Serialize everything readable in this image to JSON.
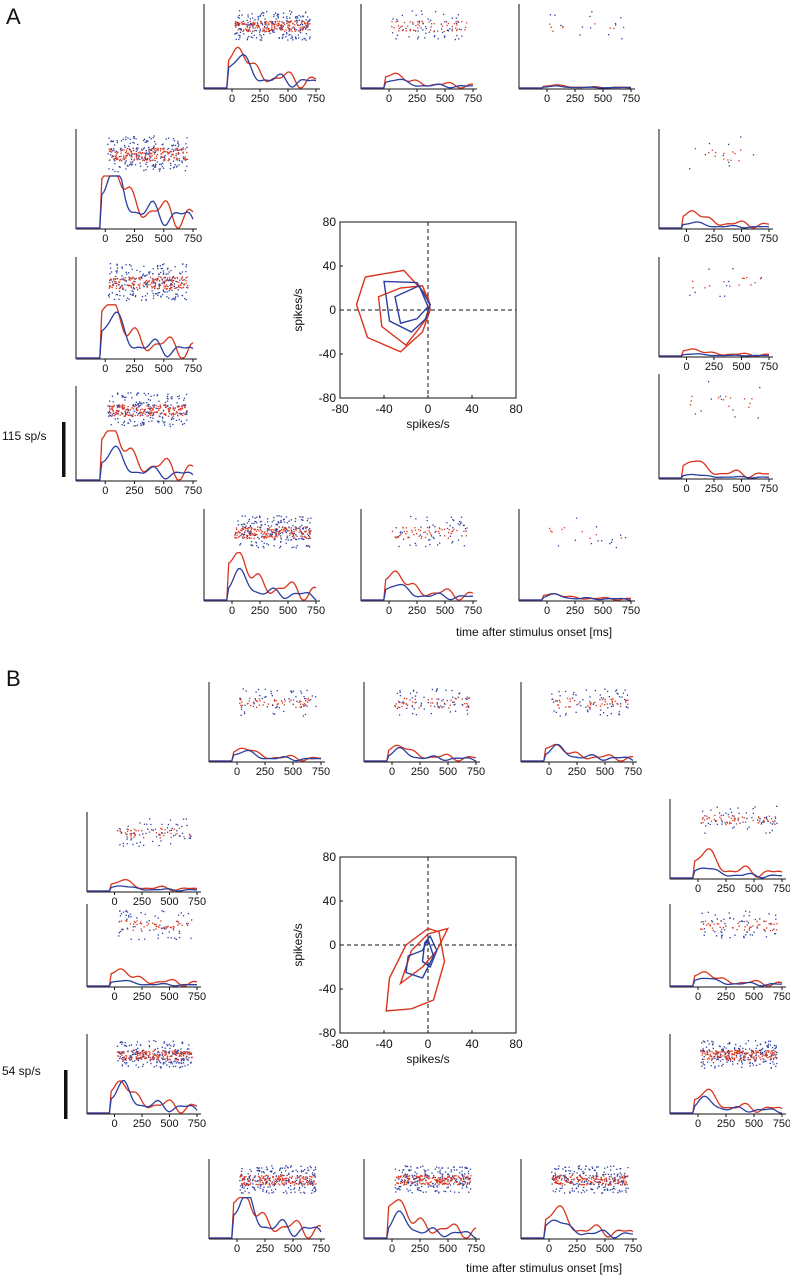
{
  "figure": {
    "panel_A_letter": "A",
    "panel_B_letter": "B",
    "x_axis_title": "time after stimulus onset [ms]",
    "colors": {
      "red": "#d9351e",
      "blue": "#2a3fa0",
      "axis": "#111111"
    }
  },
  "chart_data": [
    {
      "type": "line",
      "panel": "A",
      "subplot": "psth-grid",
      "scale_bar_label": "115 sp/s",
      "scale_bar_value": 115,
      "x_ticks": [
        0,
        250,
        500,
        750
      ],
      "xlim": [
        -250,
        750
      ],
      "series_colors": [
        "red",
        "blue"
      ],
      "cells": [
        {
          "pos": "top-1",
          "red_peak": 0.7,
          "blue_peak": 0.55,
          "density": "high"
        },
        {
          "pos": "top-2",
          "red_peak": 0.25,
          "blue_peak": 0.15,
          "density": "medium"
        },
        {
          "pos": "top-3",
          "red_peak": 0.05,
          "blue_peak": 0.03,
          "density": "sparse"
        },
        {
          "pos": "left-1",
          "red_peak": 1.0,
          "blue_peak": 0.85,
          "density": "high"
        },
        {
          "pos": "left-2",
          "red_peak": 0.8,
          "blue_peak": 0.6,
          "density": "high"
        },
        {
          "pos": "left-3",
          "red_peak": 0.85,
          "blue_peak": 0.45,
          "density": "high"
        },
        {
          "pos": "right-1",
          "red_peak": 0.25,
          "blue_peak": 0.08,
          "density": "sparse"
        },
        {
          "pos": "right-2",
          "red_peak": 0.1,
          "blue_peak": 0.03,
          "density": "sparse"
        },
        {
          "pos": "right-3",
          "red_peak": 0.25,
          "blue_peak": 0.05,
          "density": "sparse"
        },
        {
          "pos": "bottom-1",
          "red_peak": 0.75,
          "blue_peak": 0.4,
          "density": "high"
        },
        {
          "pos": "bottom-2",
          "red_peak": 0.45,
          "blue_peak": 0.25,
          "density": "medium"
        },
        {
          "pos": "bottom-3",
          "red_peak": 0.1,
          "blue_peak": 0.08,
          "density": "sparse"
        }
      ]
    },
    {
      "type": "line",
      "panel": "A",
      "subplot": "polar",
      "xlabel": "spikes/s",
      "ylabel": "spikes/s",
      "xlim": [
        -80,
        80
      ],
      "ylim": [
        -80,
        80
      ],
      "x_ticks": [
        -80,
        -40,
        0,
        40,
        80
      ],
      "y_ticks": [
        -80,
        -40,
        0,
        40,
        80
      ],
      "series": [
        {
          "name": "",
          "color": "red",
          "points": [
            [
              -65,
              5
            ],
            [
              -57,
              30
            ],
            [
              -22,
              36
            ],
            [
              0,
              12
            ],
            [
              2,
              0
            ],
            [
              -5,
              -20
            ],
            [
              -25,
              -38
            ],
            [
              -55,
              -25
            ],
            [
              -65,
              5
            ]
          ]
        },
        {
          "name": "",
          "color": "red",
          "points": [
            [
              -45,
              12
            ],
            [
              -25,
              20
            ],
            [
              -5,
              22
            ],
            [
              2,
              5
            ],
            [
              -3,
              -10
            ],
            [
              -20,
              -32
            ],
            [
              -42,
              -15
            ],
            [
              -45,
              12
            ]
          ]
        },
        {
          "name": "",
          "color": "blue",
          "points": [
            [
              -40,
              26
            ],
            [
              -10,
              25
            ],
            [
              2,
              5
            ],
            [
              -2,
              -8
            ],
            [
              -15,
              -20
            ],
            [
              -35,
              -10
            ],
            [
              -40,
              26
            ]
          ]
        },
        {
          "name": "",
          "color": "blue",
          "points": [
            [
              -30,
              12
            ],
            [
              -8,
              22
            ],
            [
              0,
              3
            ],
            [
              -10,
              -8
            ],
            [
              -25,
              -12
            ],
            [
              -30,
              12
            ]
          ]
        }
      ]
    },
    {
      "type": "line",
      "panel": "B",
      "subplot": "psth-grid",
      "scale_bar_label": "54 sp/s",
      "scale_bar_value": 54,
      "x_ticks": [
        0,
        250,
        500,
        750
      ],
      "xlim": [
        -250,
        750
      ],
      "series_colors": [
        "red",
        "blue"
      ],
      "cells": [
        {
          "pos": "top-1",
          "red_peak": 0.25,
          "blue_peak": 0.18,
          "density": "medium"
        },
        {
          "pos": "top-2",
          "red_peak": 0.3,
          "blue_peak": 0.2,
          "density": "medium"
        },
        {
          "pos": "top-3",
          "red_peak": 0.3,
          "blue_peak": 0.25,
          "density": "medium"
        },
        {
          "pos": "left-1",
          "red_peak": 0.2,
          "blue_peak": 0.1,
          "density": "medium"
        },
        {
          "pos": "left-2",
          "red_peak": 0.3,
          "blue_peak": 0.1,
          "density": "medium"
        },
        {
          "pos": "left-3",
          "red_peak": 0.6,
          "blue_peak": 0.5,
          "density": "high"
        },
        {
          "pos": "right-1",
          "red_peak": 0.5,
          "blue_peak": 0.2,
          "density": "medium"
        },
        {
          "pos": "right-2",
          "red_peak": 0.25,
          "blue_peak": 0.15,
          "density": "medium"
        },
        {
          "pos": "right-3",
          "red_peak": 0.4,
          "blue_peak": 0.25,
          "density": "high"
        },
        {
          "pos": "bottom-1",
          "red_peak": 0.85,
          "blue_peak": 0.75,
          "density": "high"
        },
        {
          "pos": "bottom-2",
          "red_peak": 0.7,
          "blue_peak": 0.4,
          "density": "high"
        },
        {
          "pos": "bottom-3",
          "red_peak": 0.55,
          "blue_peak": 0.35,
          "density": "high"
        }
      ]
    },
    {
      "type": "line",
      "panel": "B",
      "subplot": "polar",
      "xlabel": "spikes/s",
      "ylabel": "spikes/s",
      "xlim": [
        -80,
        80
      ],
      "ylim": [
        -80,
        80
      ],
      "x_ticks": [
        -80,
        -40,
        0,
        40,
        80
      ],
      "y_ticks": [
        -80,
        -40,
        0,
        40,
        80
      ],
      "series": [
        {
          "name": "",
          "color": "red",
          "points": [
            [
              -38,
              -60
            ],
            [
              -35,
              -30
            ],
            [
              -20,
              0
            ],
            [
              0,
              15
            ],
            [
              10,
              12
            ],
            [
              15,
              -15
            ],
            [
              5,
              -50
            ],
            [
              -15,
              -58
            ],
            [
              -38,
              -60
            ]
          ]
        },
        {
          "name": "",
          "color": "red",
          "points": [
            [
              -25,
              -35
            ],
            [
              -15,
              -5
            ],
            [
              0,
              10
            ],
            [
              18,
              15
            ],
            [
              8,
              -5
            ],
            [
              -5,
              -20
            ],
            [
              -25,
              -35
            ]
          ]
        },
        {
          "name": "",
          "color": "blue",
          "points": [
            [
              -20,
              -25
            ],
            [
              -18,
              -10
            ],
            [
              -5,
              -5
            ],
            [
              0,
              5
            ],
            [
              5,
              -10
            ],
            [
              -5,
              -30
            ],
            [
              -20,
              -25
            ]
          ]
        },
        {
          "name": "",
          "color": "blue",
          "points": [
            [
              -5,
              -15
            ],
            [
              -3,
              2
            ],
            [
              2,
              8
            ],
            [
              8,
              -5
            ],
            [
              2,
              -20
            ],
            [
              -5,
              -15
            ]
          ]
        }
      ]
    }
  ]
}
